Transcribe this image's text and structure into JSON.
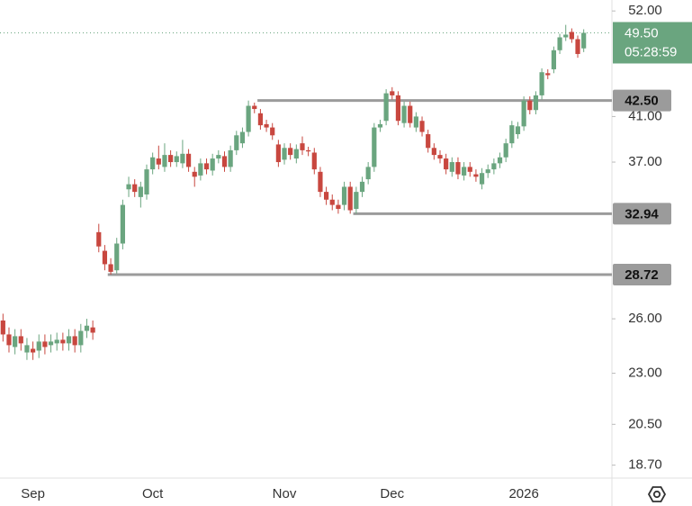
{
  "chart_data": {
    "type": "candlestick",
    "categories": [
      null,
      null,
      null,
      null,
      null,
      "Sep",
      null,
      null,
      null,
      null,
      null,
      null,
      null,
      null,
      null,
      null,
      null,
      null,
      null,
      null,
      null,
      null,
      null,
      null,
      null,
      "Oct",
      null,
      null,
      null,
      null,
      null,
      null,
      null,
      null,
      null,
      null,
      null,
      null,
      null,
      null,
      null,
      null,
      null,
      null,
      null,
      null,
      null,
      "Nov",
      null,
      null,
      null,
      null,
      null,
      null,
      null,
      null,
      null,
      null,
      null,
      null,
      null,
      null,
      null,
      null,
      null,
      "Dec",
      null,
      null,
      null,
      null,
      null,
      null,
      null,
      null,
      null,
      null,
      null,
      null,
      null,
      null,
      null,
      null,
      null,
      null,
      null,
      null,
      null,
      "2026",
      null,
      null,
      null,
      null,
      null,
      null,
      null,
      null,
      null,
      null
    ],
    "open": [
      25.9,
      25.1,
      24.4,
      25.0,
      24.1,
      24.3,
      24.2,
      24.7,
      24.5,
      24.6,
      24.8,
      24.6,
      25.0,
      24.5,
      25.3,
      25.5,
      31.6,
      30.3,
      29.4,
      29.0,
      30.8,
      34.8,
      35.2,
      34.2,
      34.4,
      36.4,
      37.3,
      36.6,
      37.6,
      37.0,
      36.9,
      37.7,
      36.2,
      35.9,
      36.9,
      36.3,
      37.3,
      37.5,
      36.6,
      38.0,
      38.6,
      39.6,
      42.0,
      41.3,
      40.3,
      40.0,
      38.5,
      37.2,
      38.2,
      37.3,
      38.6,
      38.0,
      37.8,
      36.2,
      34.6,
      34.0,
      33.6,
      33.6,
      35.0,
      33.3,
      34.6,
      35.6,
      36.6,
      40.0,
      40.6,
      43.4,
      43.0,
      40.4,
      42.0,
      40.0,
      40.6,
      39.4,
      38.2,
      37.6,
      37.3,
      36.2,
      37.0,
      35.9,
      36.6,
      36.0,
      35.2,
      36.1,
      36.4,
      36.9,
      37.4,
      38.6,
      39.4,
      40.1,
      42.5,
      41.6,
      43.0,
      45.2,
      45.6,
      47.6,
      49.0,
      49.6,
      48.8,
      47.8
    ],
    "high": [
      26.3,
      25.5,
      25.4,
      25.4,
      24.9,
      24.7,
      25.1,
      25.1,
      25.1,
      25.2,
      25.2,
      25.4,
      25.4,
      25.7,
      26.0,
      25.9,
      32.2,
      30.7,
      29.8,
      31.2,
      34.0,
      35.8,
      35.6,
      35.4,
      36.8,
      37.8,
      38.4,
      38.6,
      38.0,
      37.9,
      38.9,
      38.1,
      36.6,
      37.3,
      37.3,
      37.7,
      38.0,
      37.9,
      38.4,
      39.7,
      40.0,
      42.5,
      42.3,
      41.7,
      40.7,
      40.4,
      38.9,
      38.6,
      38.6,
      38.5,
      39.2,
      38.3,
      38.2,
      36.6,
      35.0,
      34.4,
      34.0,
      35.4,
      35.4,
      35.0,
      35.8,
      37.0,
      40.4,
      40.7,
      43.6,
      43.8,
      43.4,
      42.4,
      42.4,
      41.4,
      41.0,
      39.8,
      38.6,
      38.0,
      37.7,
      37.4,
      37.4,
      37.0,
      37.0,
      36.4,
      36.5,
      36.8,
      37.3,
      37.8,
      39.0,
      40.6,
      40.5,
      42.9,
      42.9,
      43.4,
      45.7,
      45.6,
      48.0,
      49.4,
      50.4,
      50.0,
      49.2,
      49.9
    ],
    "low": [
      24.7,
      24.1,
      24.0,
      24.2,
      23.7,
      23.7,
      23.8,
      24.0,
      24.1,
      24.2,
      24.2,
      24.2,
      24.1,
      24.1,
      24.9,
      24.8,
      30.2,
      29.0,
      28.72,
      28.8,
      30.4,
      34.2,
      34.2,
      33.4,
      34.0,
      36.0,
      36.4,
      36.2,
      36.6,
      36.6,
      36.5,
      36.2,
      35.0,
      35.5,
      36.0,
      35.9,
      36.9,
      36.2,
      36.2,
      37.6,
      38.2,
      39.2,
      41.3,
      39.8,
      39.6,
      38.9,
      36.6,
      36.8,
      37.2,
      36.9,
      37.6,
      37.5,
      36.0,
      34.2,
      33.6,
      33.2,
      32.94,
      33.2,
      32.94,
      32.94,
      34.2,
      35.2,
      36.2,
      39.6,
      40.2,
      42.6,
      40.2,
      40.0,
      40.0,
      39.6,
      39.2,
      37.8,
      37.2,
      36.9,
      36.0,
      35.8,
      35.6,
      35.5,
      35.8,
      35.4,
      34.8,
      35.7,
      36.0,
      36.5,
      37.0,
      38.2,
      39.0,
      39.7,
      41.2,
      41.2,
      42.6,
      44.6,
      45.2,
      47.2,
      48.6,
      48.4,
      46.8,
      47.4
    ],
    "close": [
      25.1,
      24.5,
      25.0,
      24.6,
      24.5,
      24.1,
      24.7,
      24.4,
      24.7,
      24.8,
      24.6,
      25.0,
      24.5,
      25.3,
      25.6,
      25.2,
      30.6,
      29.4,
      28.9,
      30.8,
      33.6,
      35.2,
      34.6,
      35.0,
      36.4,
      37.4,
      36.8,
      37.6,
      37.0,
      37.5,
      37.7,
      36.6,
      35.8,
      36.9,
      36.4,
      37.3,
      37.6,
      36.6,
      38.0,
      39.3,
      39.6,
      42.0,
      41.7,
      40.2,
      40.0,
      39.3,
      37.0,
      38.2,
      37.6,
      38.1,
      38.0,
      37.9,
      36.4,
      34.6,
      34.0,
      33.6,
      33.3,
      35.0,
      33.2,
      34.6,
      35.4,
      36.6,
      40.0,
      40.3,
      43.2,
      43.0,
      40.6,
      42.0,
      40.4,
      41.0,
      39.6,
      38.2,
      37.6,
      37.3,
      36.4,
      37.0,
      36.0,
      36.6,
      36.2,
      35.8,
      36.1,
      36.4,
      36.9,
      37.4,
      38.6,
      40.2,
      40.1,
      42.5,
      41.6,
      43.0,
      45.3,
      45.0,
      47.6,
      49.0,
      49.3,
      48.8,
      47.2,
      49.5
    ],
    "up_color": "#6aa57f",
    "down_color": "#c8473f",
    "log_scale": true,
    "ylim": [
      18.2,
      53.3
    ],
    "yticks": [
      {
        "value": 52,
        "label": "52.00"
      },
      {
        "value": 41,
        "label": "41.00"
      },
      {
        "value": 37,
        "label": "37.00"
      },
      {
        "value": 26,
        "label": "26.00"
      },
      {
        "value": 23,
        "label": "23.00"
      },
      {
        "value": 20.5,
        "label": "20.50"
      },
      {
        "value": 18.7,
        "label": "18.70"
      }
    ],
    "levels": [
      {
        "value": 42.5,
        "label": "42.50",
        "from": 43
      },
      {
        "value": 32.94,
        "label": "32.94",
        "from": 59
      },
      {
        "value": 28.72,
        "label": "28.72",
        "from": 18
      }
    ],
    "level_color": "#9b9b9b",
    "last_price": {
      "value": 49.5,
      "label": "49.50"
    },
    "countdown": "05:28:59"
  }
}
